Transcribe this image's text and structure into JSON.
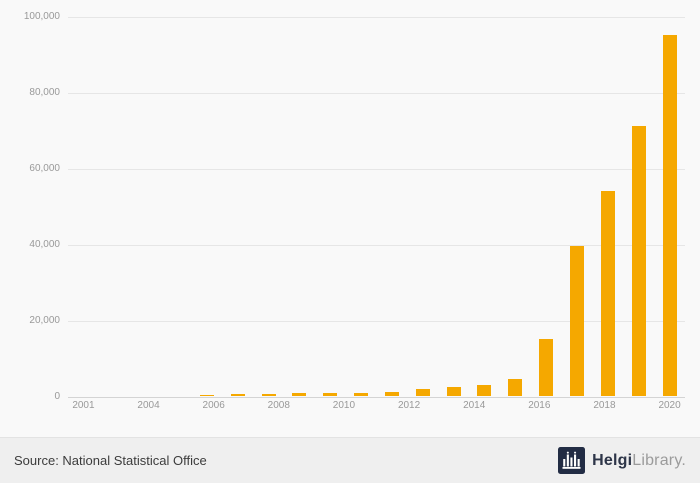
{
  "chart_data": {
    "type": "bar",
    "title": "",
    "xlabel": "",
    "ylabel": "",
    "categories": [
      2001,
      2002,
      2003,
      2004,
      2005,
      2006,
      2007,
      2008,
      2009,
      2010,
      2011,
      2012,
      2013,
      2014,
      2015,
      2016,
      2017,
      2018,
      2019,
      2020
    ],
    "values": [
      40,
      60,
      80,
      110,
      160,
      400,
      450,
      700,
      800,
      800,
      1000,
      1800,
      2300,
      2900,
      4400,
      15000,
      39500,
      54000,
      71000,
      95000
    ],
    "ylim": [
      0,
      100000
    ],
    "yticks": [
      0,
      20000,
      40000,
      60000,
      80000,
      100000
    ],
    "ytick_labels": [
      "0",
      "20,000",
      "40,000",
      "60,000",
      "80,000",
      "100,000"
    ],
    "xtick_labels": [
      "2001",
      "2004",
      "2006",
      "2008",
      "2010",
      "2012",
      "2014",
      "2016",
      "2018",
      "2020"
    ],
    "grid": true,
    "legend": false,
    "bar_color": "#f5a800"
  },
  "footer": {
    "source_text": "Source: National Statistical Office",
    "logo_text_bold": "Helgi",
    "logo_text_light": "Library."
  },
  "colors": {
    "bar": "#f5a800",
    "logo_bg": "#222c44",
    "logo_glyph": "#ffffff",
    "chart_bg": "#f9f9f9",
    "footer_bg": "#efefef"
  }
}
